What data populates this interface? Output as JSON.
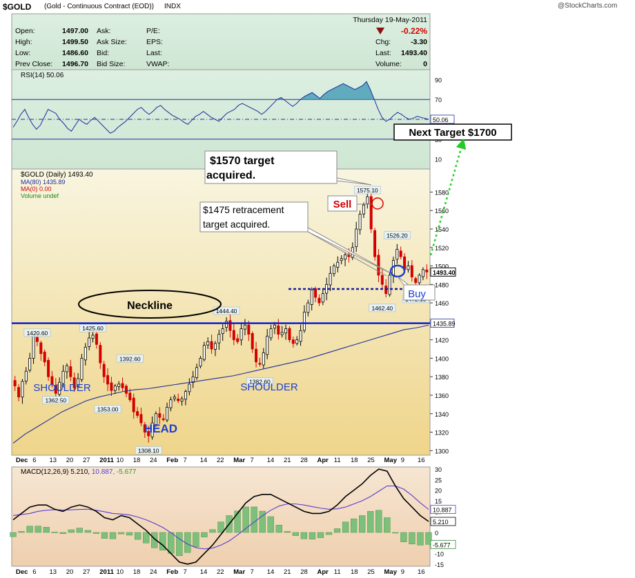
{
  "header": {
    "symbol": "$GOLD",
    "description": "(Gold - Continuous Contract (EOD))",
    "exchange": "INDX",
    "source": "@StockCharts.com",
    "date": "Thursday  19-May-2011",
    "change_pct": "-0.22%",
    "quote_left": [
      {
        "label": "Open:",
        "value": "1497.00"
      },
      {
        "label": "High:",
        "value": "1499.50"
      },
      {
        "label": "Low:",
        "value": "1486.60"
      },
      {
        "label": "Prev Close:",
        "value": "1496.70"
      }
    ],
    "quote_mid": [
      "Ask:",
      "Ask Size:",
      "Bid:",
      "Bid Size:"
    ],
    "quote_mid2": [
      "P/E:",
      "EPS:",
      "Last:",
      "VWAP:"
    ],
    "quote_right": [
      {
        "label": "Chg:",
        "value": "-3.30"
      },
      {
        "label": "Last:",
        "value": "1493.40"
      },
      {
        "label": "Volume:",
        "value": "0"
      }
    ]
  },
  "colors": {
    "up": "#000000",
    "down": "#d40000",
    "ma80": "#1c2d9c",
    "rsi_line": "#1c2d9c",
    "neckline": "#0a1fd6",
    "target_arrow": "#22cc22",
    "price_bg_top": "#f7f3d9",
    "price_bg_bottom": "#f0d890",
    "rsi_bg": "#d6ecdb",
    "macd_bg": "#f2dcc4"
  },
  "chart_data": [
    {
      "type": "line",
      "panel": "rsi",
      "title": "RSI(14) 50.06",
      "last_label": "50.06",
      "y_ticks": [
        90,
        70,
        50,
        30,
        10
      ],
      "ylim": [
        0,
        100
      ],
      "reference_lines": [
        70,
        30
      ],
      "values": [
        42,
        48,
        55,
        60,
        52,
        45,
        40,
        44,
        52,
        60,
        58,
        56,
        50,
        46,
        41,
        38,
        44,
        50,
        47,
        45,
        49,
        52,
        48,
        44,
        40,
        36,
        38,
        42,
        45,
        48,
        52,
        56,
        60,
        62,
        58,
        55,
        58,
        62,
        64,
        60,
        57,
        54,
        52,
        50,
        47,
        45,
        49,
        53,
        55,
        58,
        55,
        52,
        50,
        48,
        52,
        56,
        58,
        60,
        64,
        66,
        64,
        62,
        60,
        58,
        55,
        58,
        62,
        66,
        70,
        72,
        69,
        66,
        63,
        66,
        70,
        73,
        75,
        77,
        74,
        71,
        75,
        78,
        80,
        82,
        84,
        86,
        84,
        82,
        80,
        82,
        84,
        88,
        80,
        70,
        60,
        52,
        48,
        50,
        54,
        57,
        55,
        52,
        50,
        51,
        53,
        52,
        51,
        50.06
      ]
    },
    {
      "type": "candlestick",
      "panel": "price",
      "title": "$GOLD (Daily) 1493.40",
      "legend": [
        "MA(80) 1435.89",
        "MA(0) 0.00",
        "Volume undef"
      ],
      "ylim": [
        1295,
        1605
      ],
      "y_ticks": [
        1300,
        1320,
        1340,
        1360,
        1380,
        1400,
        1420,
        1440,
        1460,
        1480,
        1500,
        1520,
        1540,
        1560,
        1580
      ],
      "x_ticks": [
        "Dec",
        "6",
        "13",
        "20",
        "27",
        "2011",
        "10",
        "18",
        "24",
        "Feb",
        "7",
        "14",
        "22",
        "Mar",
        "7",
        "14",
        "21",
        "28",
        "Apr",
        "11",
        "18",
        "25",
        "May",
        "9",
        "16"
      ],
      "closes": [
        1370,
        1358,
        1375,
        1386,
        1400,
        1424,
        1418,
        1405,
        1396,
        1380,
        1372,
        1362,
        1374,
        1386,
        1392,
        1380,
        1368,
        1378,
        1400,
        1412,
        1422,
        1425,
        1415,
        1395,
        1380,
        1372,
        1365,
        1370,
        1372,
        1368,
        1362,
        1355,
        1342,
        1338,
        1330,
        1320,
        1316,
        1330,
        1340,
        1336,
        1334,
        1347,
        1355,
        1358,
        1354,
        1356,
        1364,
        1372,
        1380,
        1390,
        1400,
        1414,
        1418,
        1410,
        1416,
        1426,
        1432,
        1440,
        1430,
        1420,
        1418,
        1432,
        1436,
        1426,
        1410,
        1396,
        1394,
        1406,
        1424,
        1432,
        1436,
        1426,
        1428,
        1432,
        1420,
        1416,
        1420,
        1430,
        1450,
        1460,
        1474,
        1466,
        1460,
        1470,
        1480,
        1492,
        1500,
        1504,
        1508,
        1512,
        1510,
        1520,
        1540,
        1556,
        1566,
        1575,
        1540,
        1510,
        1490,
        1480,
        1470,
        1490,
        1506,
        1518,
        1510,
        1496,
        1500,
        1488,
        1482,
        1490,
        1496,
        1493.4
      ],
      "ma80_values": [
        1308,
        1318,
        1326,
        1334,
        1342,
        1348,
        1354,
        1358,
        1361,
        1364,
        1366,
        1367,
        1369,
        1371,
        1373,
        1375,
        1377,
        1379,
        1381,
        1384,
        1387,
        1390,
        1393,
        1396,
        1399,
        1403,
        1407,
        1411,
        1415,
        1419,
        1423,
        1427,
        1431,
        1433,
        1435.89
      ],
      "price_labels": [
        {
          "text": "1420.60",
          "value": 1420.6,
          "index": 6
        },
        {
          "text": "1362.50",
          "value": 1362.5,
          "index": 11
        },
        {
          "text": "1425.60",
          "value": 1425.6,
          "index": 21
        },
        {
          "text": "1392.60",
          "value": 1392.6,
          "index": 31
        },
        {
          "text": "1353.00",
          "value": 1353.0,
          "index": 25
        },
        {
          "text": "1308.10",
          "value": 1308.1,
          "index": 36
        },
        {
          "text": "1444.40",
          "value": 1444.4,
          "index": 57
        },
        {
          "text": "1382.60",
          "value": 1382.6,
          "index": 66
        },
        {
          "text": "1575.10",
          "value": 1575.1,
          "index": 95
        },
        {
          "text": "1526.20",
          "value": 1526.2,
          "index": 103
        },
        {
          "text": "1462.40",
          "value": 1462.4,
          "index": 99
        },
        {
          "text": "1472.10",
          "value": 1472.1,
          "index": 108
        }
      ],
      "last_label": "1493.40",
      "ma_label": "1435.89",
      "neckline": 1438,
      "retracement_level": 1475,
      "annotations": {
        "target_1570": "$1570 target\nacquired.",
        "retracement": "$1475 retracement\ntarget acquired.",
        "next_target": "Next Target $1700",
        "sell": "Sell",
        "buy": "Buy",
        "neckline": "Neckline",
        "shoulder_left": "SHOULDER",
        "shoulder_right": "SHOULDER",
        "head": "HEAD"
      }
    },
    {
      "type": "line",
      "panel": "macd",
      "title": "MACD(12,26,9) 5.210, 10.887, -5.677",
      "title_parts": [
        "MACD(12,26,9) 5.210, ",
        "10.887",
        ", -5.677"
      ],
      "ylim": [
        -16,
        31
      ],
      "y_ticks": [
        30,
        25,
        20,
        15,
        10,
        5,
        0,
        -5,
        -10,
        -15
      ],
      "last_labels": [
        "10.887",
        "5.210",
        "-5.677"
      ],
      "macd_values": [
        6,
        9,
        12,
        13,
        13,
        11,
        10,
        12,
        13,
        12,
        10,
        7,
        6,
        8,
        7,
        4,
        1,
        -3,
        -6,
        -10,
        -14,
        -15,
        -14,
        -10,
        -6,
        -1,
        4,
        9,
        14,
        17,
        18,
        18,
        16,
        14,
        12,
        10,
        9,
        9,
        10,
        13,
        17,
        20,
        23,
        27,
        30,
        29,
        22,
        16,
        12,
        8,
        5.21
      ],
      "signal_values": [
        8,
        8.5,
        9,
        10,
        10.5,
        10.8,
        10.6,
        10.7,
        10.9,
        11,
        10.5,
        9.8,
        9,
        8.7,
        8.3,
        7.3,
        6,
        4.3,
        2.4,
        -0.1,
        -3,
        -5.5,
        -7.2,
        -7.8,
        -7.4,
        -6,
        -4,
        -1.2,
        1.9,
        4.9,
        7.9,
        10.5,
        12.5,
        13.5,
        13.5,
        13,
        12.2,
        11.5,
        11,
        11.2,
        12,
        13.5,
        15,
        17,
        19.5,
        22,
        22,
        20.5,
        17.5,
        14,
        10.887
      ],
      "histogram_values": [
        -2,
        0.5,
        3,
        3,
        2.5,
        0.2,
        -0.6,
        1.3,
        2.1,
        1,
        -0.5,
        -2.8,
        -3,
        -0.7,
        -1.3,
        -3.3,
        -5,
        -7.3,
        -8.4,
        -9.9,
        -11,
        -9.5,
        -6.8,
        -2.2,
        1.4,
        5,
        8,
        10.2,
        12.1,
        12.1,
        10.1,
        7.5,
        3.5,
        0.5,
        -1.5,
        -3,
        -3.2,
        -2.5,
        -1,
        1.8,
        5,
        6.5,
        8,
        10,
        10.5,
        7,
        0,
        -4.5,
        -5.5,
        -6,
        -5.677
      ]
    }
  ]
}
